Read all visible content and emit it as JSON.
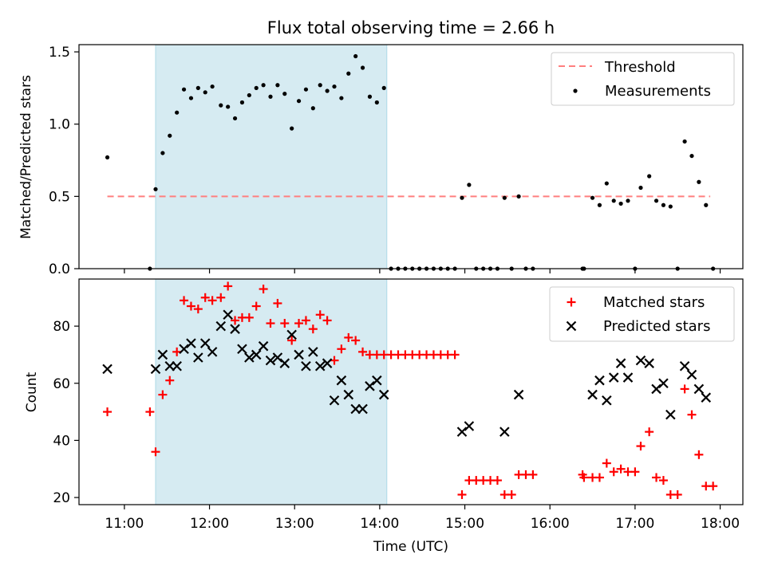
{
  "figure": {
    "title": "Flux total observing time = 2.66 h",
    "xlabel": "Time (UTC)",
    "x_tick_labels": [
      "11:00",
      "12:00",
      "13:00",
      "14:00",
      "15:00",
      "16:00",
      "17:00",
      "18:00"
    ]
  },
  "colors": {
    "shade": "#add8e6",
    "threshold": "#ff7f7f",
    "measurement": "#000000",
    "matched": "#ff0000",
    "predicted": "#000000"
  },
  "chart_data": [
    {
      "type": "scatter",
      "ylabel": "Matched/Predicted stars",
      "xlim": [
        "10:28",
        "18:16"
      ],
      "ylim": [
        0,
        1.55
      ],
      "y_ticks": [
        "0.0",
        "0.5",
        "1.0",
        "1.5"
      ],
      "shaded_span": [
        "11:22",
        "14:05"
      ],
      "legend": {
        "placement": "top-right",
        "entries": [
          "Threshold",
          "Measurements"
        ]
      },
      "threshold": {
        "name": "Threshold",
        "y": 0.5,
        "x_range": [
          "10:48",
          "17:53"
        ]
      },
      "series": [
        {
          "name": "Measurements",
          "points": [
            [
              "10:48",
              0.77
            ],
            [
              "11:18",
              0.0
            ],
            [
              "11:22",
              0.55
            ],
            [
              "11:27",
              0.8
            ],
            [
              "11:32",
              0.92
            ],
            [
              "11:37",
              1.08
            ],
            [
              "11:42",
              1.24
            ],
            [
              "11:47",
              1.18
            ],
            [
              "11:52",
              1.25
            ],
            [
              "11:57",
              1.22
            ],
            [
              "12:02",
              1.26
            ],
            [
              "12:08",
              1.13
            ],
            [
              "12:13",
              1.12
            ],
            [
              "12:18",
              1.04
            ],
            [
              "12:23",
              1.15
            ],
            [
              "12:28",
              1.2
            ],
            [
              "12:33",
              1.25
            ],
            [
              "12:38",
              1.27
            ],
            [
              "12:43",
              1.19
            ],
            [
              "12:48",
              1.27
            ],
            [
              "12:53",
              1.21
            ],
            [
              "12:58",
              0.97
            ],
            [
              "13:03",
              1.16
            ],
            [
              "13:08",
              1.24
            ],
            [
              "13:13",
              1.11
            ],
            [
              "13:18",
              1.27
            ],
            [
              "13:23",
              1.23
            ],
            [
              "13:28",
              1.26
            ],
            [
              "13:33",
              1.18
            ],
            [
              "13:38",
              1.35
            ],
            [
              "13:43",
              1.47
            ],
            [
              "13:48",
              1.39
            ],
            [
              "13:53",
              1.19
            ],
            [
              "13:58",
              1.15
            ],
            [
              "14:03",
              1.25
            ],
            [
              "14:08",
              0.0
            ],
            [
              "14:13",
              0.0
            ],
            [
              "14:18",
              0.0
            ],
            [
              "14:23",
              0.0
            ],
            [
              "14:28",
              0.0
            ],
            [
              "14:33",
              0.0
            ],
            [
              "14:38",
              0.0
            ],
            [
              "14:43",
              0.0
            ],
            [
              "14:48",
              0.0
            ],
            [
              "14:53",
              0.0
            ],
            [
              "14:58",
              0.49
            ],
            [
              "15:03",
              0.58
            ],
            [
              "15:08",
              0.0
            ],
            [
              "15:13",
              0.0
            ],
            [
              "15:18",
              0.0
            ],
            [
              "15:23",
              0.0
            ],
            [
              "15:28",
              0.49
            ],
            [
              "15:33",
              0.0
            ],
            [
              "15:38",
              0.5
            ],
            [
              "15:43",
              0.0
            ],
            [
              "15:48",
              0.0
            ],
            [
              "16:23",
              0.0
            ],
            [
              "16:24",
              0.0
            ],
            [
              "16:30",
              0.49
            ],
            [
              "16:35",
              0.44
            ],
            [
              "16:40",
              0.59
            ],
            [
              "16:45",
              0.47
            ],
            [
              "16:50",
              0.45
            ],
            [
              "16:55",
              0.47
            ],
            [
              "17:00",
              0.0
            ],
            [
              "17:04",
              0.56
            ],
            [
              "17:10",
              0.64
            ],
            [
              "17:15",
              0.47
            ],
            [
              "17:20",
              0.44
            ],
            [
              "17:25",
              0.43
            ],
            [
              "17:30",
              0.0
            ],
            [
              "17:35",
              0.88
            ],
            [
              "17:40",
              0.78
            ],
            [
              "17:45",
              0.6
            ],
            [
              "17:50",
              0.44
            ],
            [
              "17:55",
              0.0
            ]
          ]
        }
      ]
    },
    {
      "type": "scatter",
      "ylabel": "Count",
      "xlim": [
        "10:28",
        "18:16"
      ],
      "ylim": [
        17.5,
        96.5
      ],
      "y_ticks": [
        "20",
        "40",
        "60",
        "80"
      ],
      "shaded_span": [
        "11:22",
        "14:05"
      ],
      "legend": {
        "placement": "top-right",
        "entries": [
          "Matched stars",
          "Predicted stars"
        ]
      },
      "series": [
        {
          "name": "Matched stars",
          "marker": "plus",
          "points": [
            [
              "10:48",
              50
            ],
            [
              "11:18",
              50
            ],
            [
              "11:22",
              36
            ],
            [
              "11:27",
              56
            ],
            [
              "11:32",
              61
            ],
            [
              "11:37",
              71
            ],
            [
              "11:42",
              89
            ],
            [
              "11:47",
              87
            ],
            [
              "11:52",
              86
            ],
            [
              "11:57",
              90
            ],
            [
              "12:02",
              89
            ],
            [
              "12:08",
              90
            ],
            [
              "12:13",
              94
            ],
            [
              "12:18",
              82
            ],
            [
              "12:23",
              83
            ],
            [
              "12:28",
              83
            ],
            [
              "12:33",
              87
            ],
            [
              "12:38",
              93
            ],
            [
              "12:43",
              81
            ],
            [
              "12:48",
              88
            ],
            [
              "12:53",
              81
            ],
            [
              "12:58",
              75
            ],
            [
              "13:03",
              81
            ],
            [
              "13:08",
              82
            ],
            [
              "13:13",
              79
            ],
            [
              "13:18",
              84
            ],
            [
              "13:23",
              82
            ],
            [
              "13:28",
              68
            ],
            [
              "13:33",
              72
            ],
            [
              "13:38",
              76
            ],
            [
              "13:43",
              75
            ],
            [
              "13:48",
              71
            ],
            [
              "13:53",
              70
            ],
            [
              "13:58",
              70
            ],
            [
              "14:03",
              70
            ],
            [
              "14:08",
              70
            ],
            [
              "14:13",
              70
            ],
            [
              "14:18",
              70
            ],
            [
              "14:23",
              70
            ],
            [
              "14:28",
              70
            ],
            [
              "14:33",
              70
            ],
            [
              "14:38",
              70
            ],
            [
              "14:43",
              70
            ],
            [
              "14:48",
              70
            ],
            [
              "14:53",
              70
            ],
            [
              "14:58",
              21
            ],
            [
              "15:03",
              26
            ],
            [
              "15:08",
              26
            ],
            [
              "15:13",
              26
            ],
            [
              "15:18",
              26
            ],
            [
              "15:23",
              26
            ],
            [
              "15:28",
              21
            ],
            [
              "15:33",
              21
            ],
            [
              "15:38",
              28
            ],
            [
              "15:43",
              28
            ],
            [
              "15:48",
              28
            ],
            [
              "16:23",
              28
            ],
            [
              "16:24",
              27
            ],
            [
              "16:30",
              27
            ],
            [
              "16:35",
              27
            ],
            [
              "16:40",
              32
            ],
            [
              "16:45",
              29
            ],
            [
              "16:50",
              30
            ],
            [
              "16:55",
              29
            ],
            [
              "17:00",
              29
            ],
            [
              "17:04",
              38
            ],
            [
              "17:10",
              43
            ],
            [
              "17:15",
              27
            ],
            [
              "17:20",
              26
            ],
            [
              "17:25",
              21
            ],
            [
              "17:30",
              21
            ],
            [
              "17:35",
              58
            ],
            [
              "17:40",
              49
            ],
            [
              "17:45",
              35
            ],
            [
              "17:50",
              24
            ],
            [
              "17:55",
              24
            ]
          ]
        },
        {
          "name": "Predicted stars",
          "marker": "cross",
          "points": [
            [
              "10:48",
              65
            ],
            [
              "11:22",
              65
            ],
            [
              "11:27",
              70
            ],
            [
              "11:32",
              66
            ],
            [
              "11:37",
              66
            ],
            [
              "11:42",
              72
            ],
            [
              "11:47",
              74
            ],
            [
              "11:52",
              69
            ],
            [
              "11:57",
              74
            ],
            [
              "12:02",
              71
            ],
            [
              "12:08",
              80
            ],
            [
              "12:13",
              84
            ],
            [
              "12:18",
              79
            ],
            [
              "12:23",
              72
            ],
            [
              "12:28",
              69
            ],
            [
              "12:33",
              70
            ],
            [
              "12:38",
              73
            ],
            [
              "12:43",
              68
            ],
            [
              "12:48",
              69
            ],
            [
              "12:53",
              67
            ],
            [
              "12:58",
              77
            ],
            [
              "13:03",
              70
            ],
            [
              "13:08",
              66
            ],
            [
              "13:13",
              71
            ],
            [
              "13:18",
              66
            ],
            [
              "13:23",
              67
            ],
            [
              "13:28",
              54
            ],
            [
              "13:33",
              61
            ],
            [
              "13:38",
              56
            ],
            [
              "13:43",
              51
            ],
            [
              "13:48",
              51
            ],
            [
              "13:53",
              59
            ],
            [
              "13:58",
              61
            ],
            [
              "14:03",
              56
            ],
            [
              "14:58",
              43
            ],
            [
              "15:03",
              45
            ],
            [
              "15:28",
              43
            ],
            [
              "15:38",
              56
            ],
            [
              "16:30",
              56
            ],
            [
              "16:35",
              61
            ],
            [
              "16:40",
              54
            ],
            [
              "16:45",
              62
            ],
            [
              "16:50",
              67
            ],
            [
              "16:55",
              62
            ],
            [
              "17:04",
              68
            ],
            [
              "17:10",
              67
            ],
            [
              "17:15",
              58
            ],
            [
              "17:20",
              60
            ],
            [
              "17:25",
              49
            ],
            [
              "17:35",
              66
            ],
            [
              "17:40",
              63
            ],
            [
              "17:45",
              58
            ],
            [
              "17:50",
              55
            ]
          ]
        }
      ]
    }
  ]
}
